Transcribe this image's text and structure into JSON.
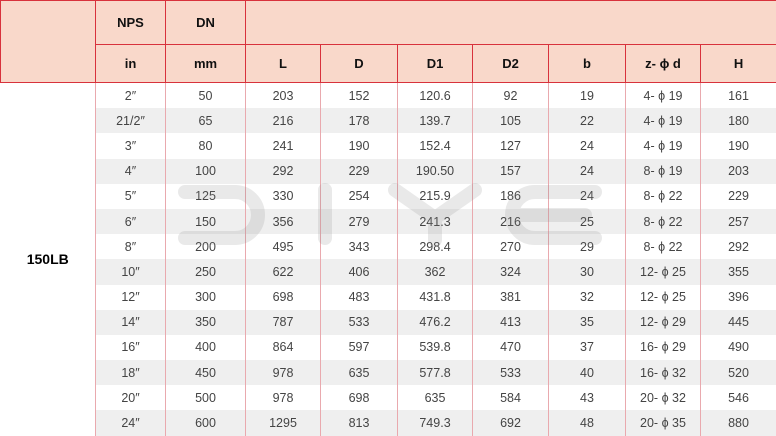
{
  "header": {
    "top": [
      "NPS",
      "DN"
    ],
    "units": [
      "in",
      "mm"
    ],
    "columns": [
      "L",
      "D",
      "D1",
      "D2",
      "b",
      "z- ϕ d",
      "H"
    ]
  },
  "grade": "150LB",
  "watermark": "DIYE",
  "rows": [
    [
      "2″",
      "50",
      "203",
      "152",
      "120.6",
      "92",
      "19",
      "4- ϕ 19",
      "161"
    ],
    [
      "21/2″",
      "65",
      "216",
      "178",
      "139.7",
      "105",
      "22",
      "4- ϕ 19",
      "180"
    ],
    [
      "3″",
      "80",
      "241",
      "190",
      "152.4",
      "127",
      "24",
      "4- ϕ 19",
      "190"
    ],
    [
      "4″",
      "100",
      "292",
      "229",
      "190.50",
      "157",
      "24",
      "8- ϕ 19",
      "203"
    ],
    [
      "5″",
      "125",
      "330",
      "254",
      "215.9",
      "186",
      "24",
      "8- ϕ 22",
      "229"
    ],
    [
      "6″",
      "150",
      "356",
      "279",
      "241.3",
      "216",
      "25",
      "8- ϕ 22",
      "257"
    ],
    [
      "8″",
      "200",
      "495",
      "343",
      "298.4",
      "270",
      "29",
      "8- ϕ 22",
      "292"
    ],
    [
      "10″",
      "250",
      "622",
      "406",
      "362",
      "324",
      "30",
      "12- ϕ 25",
      "355"
    ],
    [
      "12″",
      "300",
      "698",
      "483",
      "431.8",
      "381",
      "32",
      "12- ϕ 25",
      "396"
    ],
    [
      "14″",
      "350",
      "787",
      "533",
      "476.2",
      "413",
      "35",
      "12- ϕ 29",
      "445"
    ],
    [
      "16″",
      "400",
      "864",
      "597",
      "539.8",
      "470",
      "37",
      "16- ϕ 29",
      "490"
    ],
    [
      "18″",
      "450",
      "978",
      "635",
      "577.8",
      "533",
      "40",
      "16- ϕ 32",
      "520"
    ],
    [
      "20″",
      "500",
      "978",
      "698",
      "635",
      "584",
      "43",
      "20- ϕ 32",
      "546"
    ],
    [
      "24″",
      "600",
      "1295",
      "813",
      "749.3",
      "692",
      "48",
      "20- ϕ 35",
      "880"
    ]
  ]
}
